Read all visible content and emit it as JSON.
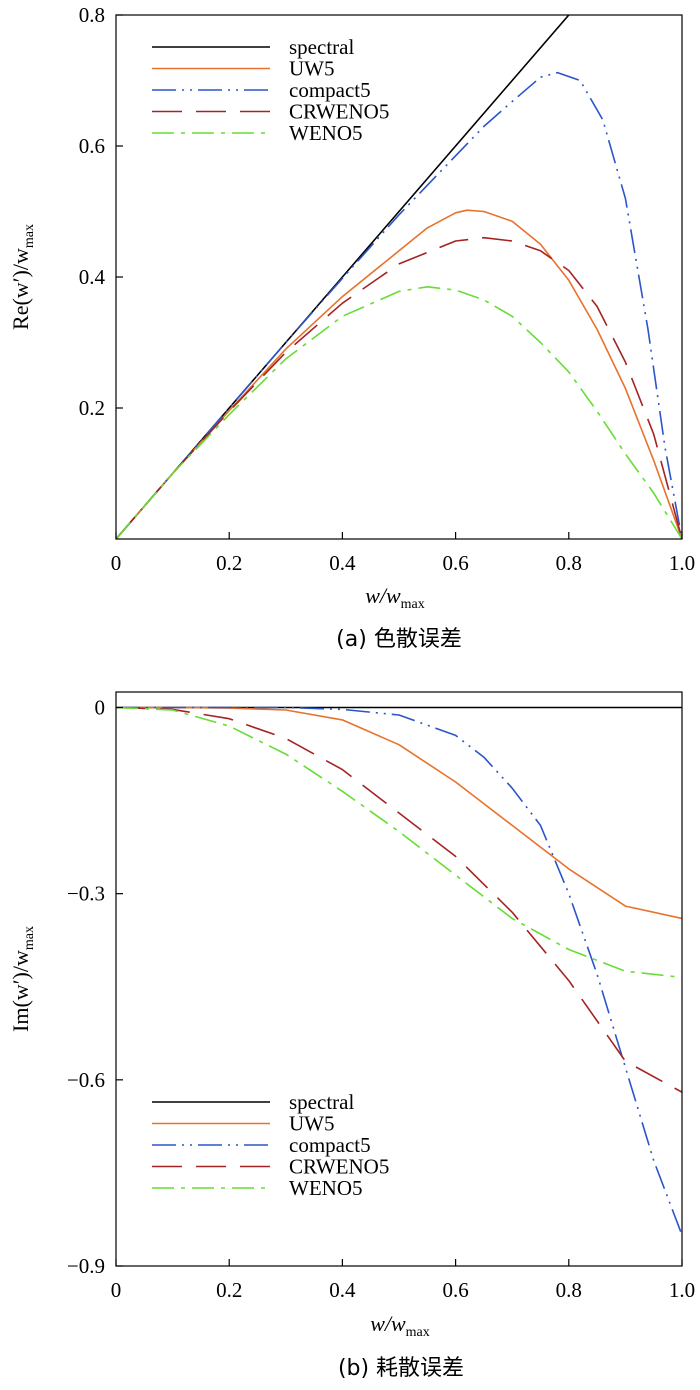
{
  "chart_data": [
    {
      "type": "line",
      "panel": "a",
      "caption": "(a) 色散误差",
      "xlabel": "w/w",
      "xlabel_sub": "max",
      "ylabel": "Re(w′)/w",
      "ylabel_sub": "max",
      "xlim": [
        0,
        1.0
      ],
      "ylim": [
        0,
        0.8
      ],
      "xticks": [
        0,
        0.2,
        0.4,
        0.6,
        0.8,
        1.0
      ],
      "xtick_labels": [
        "0",
        "0.2",
        "0.4",
        "0.6",
        "0.8",
        "1.0"
      ],
      "yticks": [
        0.2,
        0.4,
        0.6,
        0.8
      ],
      "ytick_labels": [
        "0.2",
        "0.4",
        "0.6",
        "0.8"
      ],
      "legend_position": "top-left",
      "series": [
        {
          "name": "spectral",
          "color": "#000000",
          "dash": "solid",
          "x": [
            0,
            0.1,
            0.2,
            0.3,
            0.4,
            0.5,
            0.6,
            0.7,
            0.8
          ],
          "y": [
            0,
            0.1,
            0.2,
            0.3,
            0.4,
            0.5,
            0.6,
            0.7,
            0.8
          ]
        },
        {
          "name": "UW5",
          "color": "#e8722c",
          "dash": "solid",
          "x": [
            0,
            0.1,
            0.2,
            0.3,
            0.4,
            0.5,
            0.55,
            0.6,
            0.62,
            0.65,
            0.7,
            0.75,
            0.8,
            0.85,
            0.9,
            0.95,
            1.0
          ],
          "y": [
            0,
            0.1,
            0.196,
            0.29,
            0.37,
            0.44,
            0.475,
            0.498,
            0.502,
            0.5,
            0.485,
            0.45,
            0.395,
            0.32,
            0.23,
            0.12,
            0
          ]
        },
        {
          "name": "compact5",
          "color": "#2b55c9",
          "dash": "dashdotdot",
          "x": [
            0,
            0.1,
            0.2,
            0.3,
            0.4,
            0.5,
            0.6,
            0.65,
            0.7,
            0.75,
            0.78,
            0.82,
            0.86,
            0.9,
            0.94,
            0.97,
            1.0
          ],
          "y": [
            0,
            0.1,
            0.2,
            0.3,
            0.398,
            0.495,
            0.585,
            0.63,
            0.668,
            0.705,
            0.712,
            0.7,
            0.64,
            0.52,
            0.32,
            0.14,
            0
          ]
        },
        {
          "name": "CRWENO5",
          "color": "#a52323",
          "dash": "longdash",
          "x": [
            0,
            0.1,
            0.2,
            0.3,
            0.4,
            0.5,
            0.6,
            0.65,
            0.7,
            0.75,
            0.8,
            0.85,
            0.9,
            0.95,
            1.0
          ],
          "y": [
            0,
            0.1,
            0.195,
            0.285,
            0.36,
            0.42,
            0.455,
            0.46,
            0.455,
            0.44,
            0.41,
            0.355,
            0.27,
            0.16,
            0
          ]
        },
        {
          "name": "WENO5",
          "color": "#66dd33",
          "dash": "dashdot",
          "x": [
            0,
            0.1,
            0.2,
            0.3,
            0.4,
            0.5,
            0.55,
            0.6,
            0.65,
            0.7,
            0.75,
            0.8,
            0.85,
            0.9,
            0.95,
            1.0
          ],
          "y": [
            0,
            0.1,
            0.19,
            0.275,
            0.34,
            0.378,
            0.385,
            0.38,
            0.365,
            0.34,
            0.3,
            0.255,
            0.195,
            0.13,
            0.07,
            0
          ]
        }
      ]
    },
    {
      "type": "line",
      "panel": "b",
      "caption": "(b) 耗散误差",
      "xlabel": "w/w",
      "xlabel_sub": "max",
      "ylabel": "Im(w′)/w",
      "ylabel_sub": "max",
      "xlim": [
        0,
        1.0
      ],
      "ylim": [
        -0.9,
        0.025
      ],
      "xticks": [
        0,
        0.2,
        0.4,
        0.6,
        0.8,
        1.0
      ],
      "xtick_labels": [
        "0",
        "0.2",
        "0.4",
        "0.6",
        "0.8",
        "1.0"
      ],
      "yticks": [
        0,
        -0.3,
        -0.6,
        -0.9
      ],
      "ytick_labels": [
        "0",
        "−0.3",
        "−0.6",
        "−0.9"
      ],
      "legend_position": "bottom-left",
      "series": [
        {
          "name": "spectral",
          "color": "#000000",
          "dash": "solid",
          "x": [
            0,
            1.0
          ],
          "y": [
            0,
            0
          ]
        },
        {
          "name": "UW5",
          "color": "#e8722c",
          "dash": "solid",
          "x": [
            0,
            0.1,
            0.2,
            0.3,
            0.4,
            0.5,
            0.6,
            0.7,
            0.8,
            0.9,
            1.0
          ],
          "y": [
            0,
            0,
            -0.001,
            -0.004,
            -0.02,
            -0.06,
            -0.12,
            -0.19,
            -0.26,
            -0.32,
            -0.34
          ]
        },
        {
          "name": "compact5",
          "color": "#2b55c9",
          "dash": "dashdotdot",
          "x": [
            0,
            0.2,
            0.3,
            0.4,
            0.5,
            0.6,
            0.65,
            0.7,
            0.75,
            0.8,
            0.85,
            0.9,
            0.95,
            1.0
          ],
          "y": [
            0,
            0,
            0,
            -0.003,
            -0.012,
            -0.045,
            -0.08,
            -0.13,
            -0.19,
            -0.3,
            -0.43,
            -0.58,
            -0.73,
            -0.85
          ]
        },
        {
          "name": "CRWENO5",
          "color": "#a52323",
          "dash": "longdash",
          "x": [
            0,
            0.1,
            0.2,
            0.3,
            0.4,
            0.5,
            0.6,
            0.7,
            0.8,
            0.9,
            1.0
          ],
          "y": [
            0,
            -0.003,
            -0.018,
            -0.05,
            -0.1,
            -0.17,
            -0.24,
            -0.33,
            -0.44,
            -0.57,
            -0.62
          ]
        },
        {
          "name": "WENO5",
          "color": "#66dd33",
          "dash": "dashdot",
          "x": [
            0,
            0.1,
            0.2,
            0.3,
            0.4,
            0.5,
            0.6,
            0.7,
            0.8,
            0.9,
            1.0
          ],
          "y": [
            0,
            -0.004,
            -0.03,
            -0.075,
            -0.135,
            -0.2,
            -0.27,
            -0.34,
            -0.39,
            -0.425,
            -0.435
          ]
        }
      ]
    }
  ]
}
